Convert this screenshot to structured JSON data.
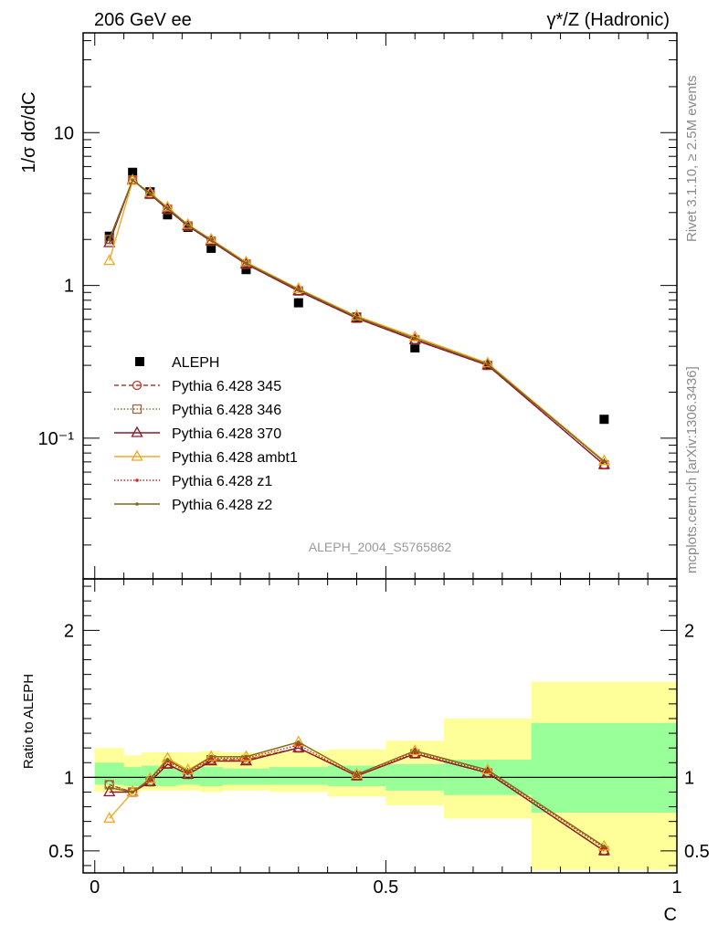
{
  "header": {
    "left": "206 GeV ee",
    "right": "γ*/Z (Hadronic)"
  },
  "side": {
    "rivet": "Rivet 3.1.10, ≥ 2.5M events",
    "mcplots": "mcplots.cern.ch [arXiv:1306.3436]"
  },
  "watermark": "ALEPH_2004_S5765862",
  "chart_data": [
    {
      "type": "scatter",
      "ylabel": "1/σ  dσ/dC",
      "yscale": "log",
      "ylim": [
        0.012,
        45
      ],
      "xlim": [
        -0.02,
        1.0
      ],
      "yticks": [
        {
          "v": 10,
          "label": "10"
        },
        {
          "v": 1,
          "label": "1"
        },
        {
          "v": 0.1,
          "label": "10⁻¹"
        }
      ],
      "x": [
        0.025,
        0.065,
        0.095,
        0.125,
        0.16,
        0.2,
        0.26,
        0.35,
        0.45,
        0.55,
        0.675,
        0.875
      ],
      "data": {
        "name": "ALEPH",
        "values": [
          2.1,
          5.5,
          4.1,
          2.9,
          2.4,
          1.75,
          1.27,
          0.77,
          0.62,
          0.39,
          0.3,
          0.133
        ]
      },
      "series": [
        {
          "name": "Pythia 6.428 345",
          "color": "#c0392b",
          "dash": "5,3",
          "marker": "circle",
          "values": [
            2.0,
            4.9,
            3.95,
            3.15,
            2.45,
            1.95,
            1.38,
            0.92,
            0.61,
            0.44,
            0.3,
            0.067
          ]
        },
        {
          "name": "Pythia 6.428 346",
          "color": "#a0683a",
          "dash": "1.5,2",
          "marker": "square",
          "values": [
            2.0,
            4.9,
            3.95,
            3.15,
            2.45,
            1.95,
            1.38,
            0.92,
            0.61,
            0.44,
            0.3,
            0.067
          ]
        },
        {
          "name": "Pythia 6.428 370",
          "color": "#8b1a2b",
          "dash": "",
          "marker": "triangle",
          "values": [
            1.9,
            4.9,
            3.95,
            3.15,
            2.45,
            1.95,
            1.38,
            0.92,
            0.61,
            0.44,
            0.3,
            0.067
          ]
        },
        {
          "name": "Pythia 6.428 ambt1",
          "color": "#f5a623",
          "dash": "",
          "marker": "triangle",
          "values": [
            1.45,
            4.85,
            4.05,
            3.25,
            2.5,
            2.0,
            1.42,
            0.95,
            0.63,
            0.46,
            0.31,
            0.071
          ]
        },
        {
          "name": "Pythia 6.428 z1",
          "color": "#e02020",
          "dash": "1.5,2",
          "marker": "dot",
          "values": [
            2.0,
            4.9,
            4.0,
            3.2,
            2.48,
            1.98,
            1.4,
            0.94,
            0.62,
            0.45,
            0.305,
            0.07
          ]
        },
        {
          "name": "Pythia 6.428 z2",
          "color": "#7a6a1a",
          "dash": "",
          "marker": "dot",
          "values": [
            2.0,
            4.9,
            4.0,
            3.2,
            2.48,
            1.98,
            1.4,
            0.94,
            0.62,
            0.45,
            0.305,
            0.07
          ]
        }
      ]
    },
    {
      "type": "line",
      "ylabel": "Ratio to ALEPH",
      "xlabel": "C",
      "ylim": [
        0.35,
        2.35
      ],
      "xlim": [
        -0.02,
        1.0
      ],
      "xticks": [
        {
          "v": 0,
          "label": "0"
        },
        {
          "v": 0.5,
          "label": "0.5"
        },
        {
          "v": 1,
          "label": "1"
        }
      ],
      "yticks": [
        {
          "v": 0.5,
          "label": "0.5"
        },
        {
          "v": 1,
          "label": "1"
        },
        {
          "v": 2,
          "label": "2"
        }
      ],
      "bands": [
        {
          "x0": 0.0,
          "x1": 0.05,
          "stat": [
            0.95,
            1.1
          ],
          "total": [
            0.9,
            1.2
          ]
        },
        {
          "x0": 0.05,
          "x1": 0.08,
          "stat": [
            0.94,
            1.07
          ],
          "total": [
            0.9,
            1.15
          ]
        },
        {
          "x0": 0.08,
          "x1": 0.11,
          "stat": [
            0.94,
            1.08
          ],
          "total": [
            0.91,
            1.17
          ]
        },
        {
          "x0": 0.11,
          "x1": 0.14,
          "stat": [
            0.94,
            1.07
          ],
          "total": [
            0.91,
            1.17
          ]
        },
        {
          "x0": 0.14,
          "x1": 0.18,
          "stat": [
            0.95,
            1.06
          ],
          "total": [
            0.91,
            1.17
          ]
        },
        {
          "x0": 0.18,
          "x1": 0.22,
          "stat": [
            0.94,
            1.07
          ],
          "total": [
            0.9,
            1.18
          ]
        },
        {
          "x0": 0.22,
          "x1": 0.3,
          "stat": [
            0.95,
            1.06
          ],
          "total": [
            0.91,
            1.17
          ]
        },
        {
          "x0": 0.3,
          "x1": 0.4,
          "stat": [
            0.95,
            1.07
          ],
          "total": [
            0.9,
            1.18
          ]
        },
        {
          "x0": 0.4,
          "x1": 0.5,
          "stat": [
            0.94,
            1.08
          ],
          "total": [
            0.87,
            1.19
          ]
        },
        {
          "x0": 0.5,
          "x1": 0.6,
          "stat": [
            0.91,
            1.09
          ],
          "total": [
            0.81,
            1.25
          ]
        },
        {
          "x0": 0.6,
          "x1": 0.75,
          "stat": [
            0.88,
            1.12
          ],
          "total": [
            0.72,
            1.4
          ]
        },
        {
          "x0": 0.75,
          "x1": 1.0,
          "stat": [
            0.76,
            1.37
          ],
          "total": [
            0.37,
            1.65
          ]
        }
      ],
      "x": [
        0.025,
        0.065,
        0.095,
        0.125,
        0.16,
        0.2,
        0.26,
        0.35,
        0.45,
        0.55,
        0.675,
        0.875
      ],
      "series": [
        {
          "name": "Pythia 6.428 345",
          "color": "#c0392b",
          "dash": "5,3",
          "marker": "circle",
          "values": [
            0.95,
            0.9,
            0.97,
            1.09,
            1.02,
            1.12,
            1.12,
            1.2,
            1.01,
            1.16,
            1.03,
            0.5
          ]
        },
        {
          "name": "Pythia 6.428 346",
          "color": "#a0683a",
          "dash": "1.5,2",
          "marker": "square",
          "values": [
            0.95,
            0.9,
            0.97,
            1.09,
            1.02,
            1.12,
            1.12,
            1.2,
            1.01,
            1.16,
            1.03,
            0.5
          ]
        },
        {
          "name": "Pythia 6.428 370",
          "color": "#8b1a2b",
          "dash": "",
          "marker": "triangle",
          "values": [
            0.9,
            0.9,
            0.97,
            1.09,
            1.02,
            1.11,
            1.11,
            1.2,
            1.01,
            1.16,
            1.03,
            0.5
          ]
        },
        {
          "name": "Pythia 6.428 ambt1",
          "color": "#f5a623",
          "dash": "",
          "marker": "triangle",
          "values": [
            0.72,
            0.9,
            0.99,
            1.13,
            1.05,
            1.14,
            1.14,
            1.24,
            1.02,
            1.18,
            1.05,
            0.53
          ]
        },
        {
          "name": "Pythia 6.428 z1",
          "color": "#e02020",
          "dash": "1.5,2",
          "marker": "dot",
          "values": [
            0.93,
            0.9,
            0.98,
            1.11,
            1.03,
            1.13,
            1.13,
            1.22,
            1.01,
            1.17,
            1.04,
            0.52
          ]
        },
        {
          "name": "Pythia 6.428 z2",
          "color": "#7a6a1a",
          "dash": "",
          "marker": "dot",
          "values": [
            0.93,
            0.9,
            0.99,
            1.12,
            1.04,
            1.14,
            1.14,
            1.24,
            1.02,
            1.18,
            1.05,
            0.53
          ]
        }
      ]
    }
  ]
}
